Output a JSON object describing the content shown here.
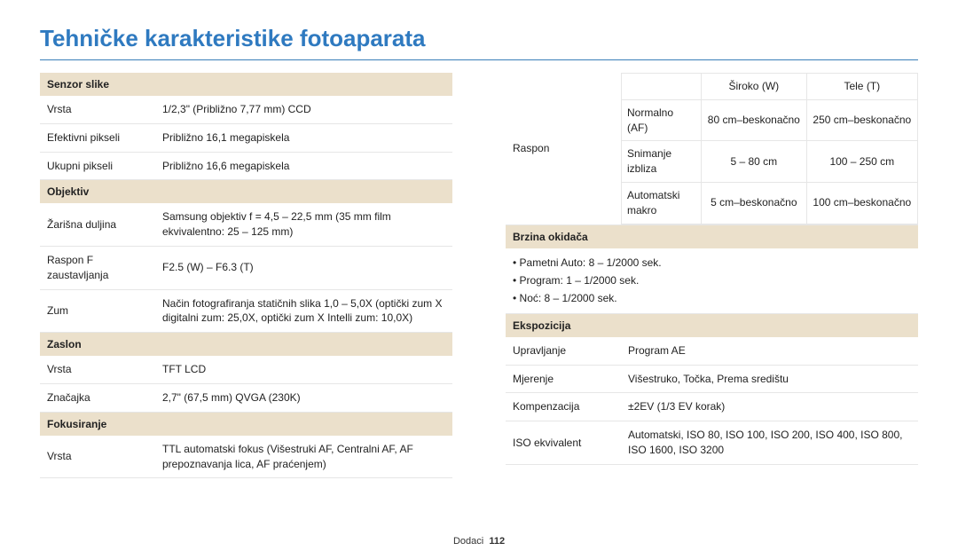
{
  "title": "Tehničke karakteristike fotoaparata",
  "footer": {
    "label": "Dodaci",
    "page": "112"
  },
  "colors": {
    "title_color": "#2f7ac0",
    "section_bg": "#ebe0cb",
    "border": "#e6e6e6",
    "text": "#222222",
    "page_bg": "#ffffff"
  },
  "left": {
    "sections": [
      {
        "header": "Senzor slike",
        "rows": [
          {
            "label": "Vrsta",
            "value": "1/2,3\" (Približno 7,77 mm) CCD"
          },
          {
            "label": "Efektivni pikseli",
            "value": "Približno 16,1 megapiskela"
          },
          {
            "label": "Ukupni pikseli",
            "value": "Približno 16,6 megapiskela"
          }
        ]
      },
      {
        "header": "Objektiv",
        "rows": [
          {
            "label": "Žarišna duljina",
            "value": "Samsung objektiv f = 4,5 – 22,5 mm\n(35 mm film ekvivalentno: 25 – 125 mm)"
          },
          {
            "label": "Raspon F zaustavljanja",
            "value": "F2.5 (W) – F6.3 (T)"
          },
          {
            "label": "Zum",
            "value": "Način fotografiranja statičnih slika 1,0 – 5,0X\n(optički zum X digitalni zum: 25,0X,\noptički zum X Intelli zum: 10,0X)"
          }
        ]
      },
      {
        "header": "Zaslon",
        "rows": [
          {
            "label": "Vrsta",
            "value": "TFT LCD"
          },
          {
            "label": "Značajka",
            "value": "2,7\" (67,5 mm) QVGA (230K)"
          }
        ]
      },
      {
        "header": "Fokusiranje",
        "rows": [
          {
            "label": "Vrsta",
            "value": "TTL automatski fokus (Višestruki AF, Centralni AF,\nAF prepoznavanja lica, AF praćenjem)"
          }
        ]
      }
    ]
  },
  "right": {
    "raspon": {
      "label": "Raspon",
      "headers": [
        "",
        "Široko (W)",
        "Tele (T)"
      ],
      "rows": [
        {
          "mode": "Normalno (AF)",
          "wide": "80 cm–beskonačno",
          "tele": "250 cm–beskonačno"
        },
        {
          "mode": "Snimanje izbliza",
          "wide": "5 – 80 cm",
          "tele": "100 – 250 cm"
        },
        {
          "mode": "Automatski makro",
          "wide": "5 cm–beskonačno",
          "tele": "100 cm–beskonačno"
        }
      ]
    },
    "brzina": {
      "header": "Brzina okidača",
      "bullets": [
        "• Pametni Auto: 8 – 1/2000 sek.",
        "• Program: 1 – 1/2000 sek.",
        "• Noć: 8 – 1/2000 sek."
      ]
    },
    "ekspozicija": {
      "header": "Ekspozicija",
      "rows": [
        {
          "label": "Upravljanje",
          "value": "Program AE"
        },
        {
          "label": "Mjerenje",
          "value": "Višestruko, Točka, Prema središtu"
        },
        {
          "label": "Kompenzacija",
          "value": "±2EV (1/3 EV korak)"
        },
        {
          "label": "ISO ekvivalent",
          "value": "Automatski, ISO 80, ISO 100, ISO 200, ISO 400, ISO 800,\nISO 1600, ISO 3200"
        }
      ]
    }
  }
}
